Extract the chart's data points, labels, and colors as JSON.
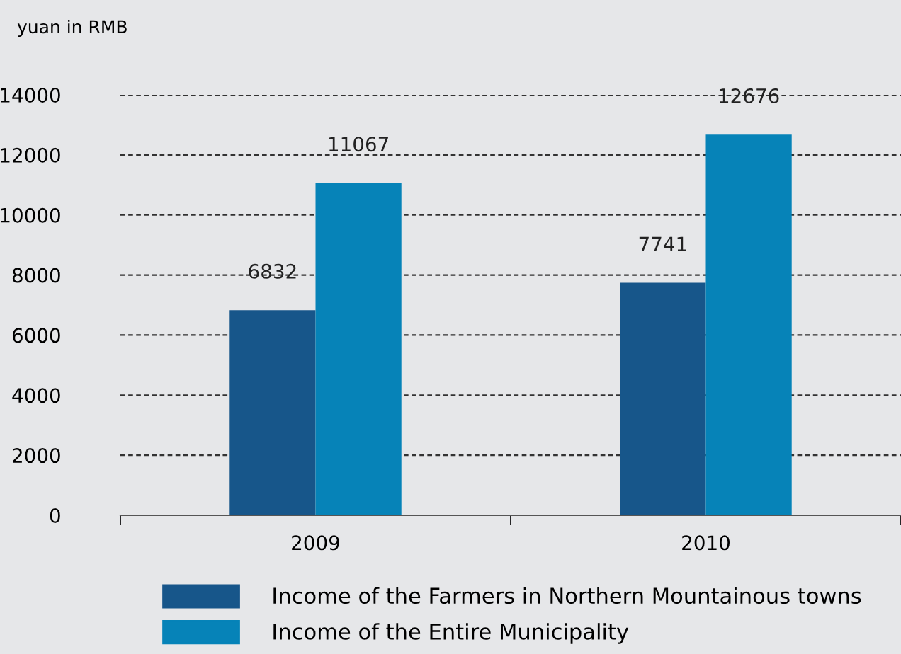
{
  "chart_data": {
    "type": "bar",
    "ylabel": "yuan in RMB",
    "categories": [
      "2009",
      "2010"
    ],
    "series": [
      {
        "name": "Income of the Farmers in Northern Mountainous towns",
        "color": "#17568a",
        "values": [
          6832,
          7741
        ]
      },
      {
        "name": "Income of the Entire Municipality",
        "color": "#0683b8",
        "values": [
          11067,
          12676
        ]
      }
    ],
    "ylim": [
      0,
      14000
    ],
    "yticks": [
      0,
      2000,
      4000,
      6000,
      8000,
      10000,
      12000,
      14000
    ],
    "grid": "y",
    "legend": "bottom",
    "data_labels": true
  }
}
